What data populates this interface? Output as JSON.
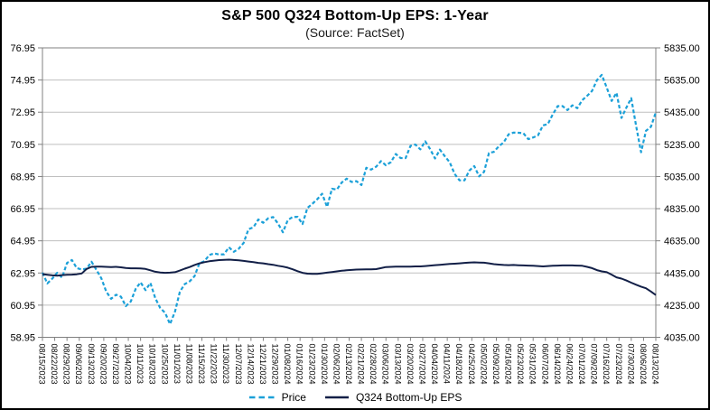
{
  "colors": {
    "price_line": "#1ba0d8",
    "eps_line": "#121f47",
    "gridline": "#bfbfbf",
    "axis_line": "#808080",
    "tick": "#808080",
    "text": "#000000",
    "frame_border": "#000000",
    "background": "#ffffff"
  },
  "chart_data": {
    "type": "line",
    "title": "S&P 500 Q324 Bottom-Up EPS: 1-Year",
    "subtitle": "(Source: FactSet)",
    "legend_position": "bottom",
    "grid": "horizontal",
    "x_tick_labels": [
      "08/15/2023",
      "08/22/2023",
      "08/29/2023",
      "09/06/2023",
      "09/13/2023",
      "09/20/2023",
      "09/27/2023",
      "10/04/2023",
      "10/11/2023",
      "10/18/2023",
      "10/25/2023",
      "11/01/2023",
      "11/08/2023",
      "11/15/2023",
      "11/22/2023",
      "11/30/2023",
      "12/07/2023",
      "12/14/2023",
      "12/21/2023",
      "12/29/2023",
      "01/08/2024",
      "01/16/2024",
      "01/23/2024",
      "01/30/2024",
      "02/06/2024",
      "02/13/2024",
      "02/21/2024",
      "02/28/2024",
      "03/06/2024",
      "03/13/2024",
      "03/20/2024",
      "03/27/2024",
      "04/04/2024",
      "04/11/2024",
      "04/18/2024",
      "04/25/2024",
      "05/02/2024",
      "05/09/2024",
      "05/16/2024",
      "05/23/2024",
      "05/31/2024",
      "06/07/2024",
      "06/14/2024",
      "06/24/2024",
      "07/01/2024",
      "07/09/2024",
      "07/16/2024",
      "07/23/2024",
      "07/30/2024",
      "08/06/2024",
      "08/13/2024"
    ],
    "y_left_axis": {
      "min": 58.95,
      "max": 76.95,
      "tick_labels": [
        "76.95",
        "74.95",
        "72.95",
        "70.95",
        "68.95",
        "66.95",
        "64.95",
        "62.95",
        "60.95",
        "58.95"
      ]
    },
    "y_right_axis": {
      "min": 4035.0,
      "max": 5835.0,
      "tick_labels": [
        "5835.00",
        "5635.00",
        "5435.00",
        "5235.00",
        "5035.00",
        "4835.00",
        "4635.00",
        "4435.00",
        "4235.00",
        "4035.00"
      ]
    },
    "series": [
      {
        "name": "Price",
        "axis": "right",
        "line_style": "dashed",
        "color": "#1ba0d8",
        "values": [
          4437,
          4370,
          4400,
          4436,
          4406,
          4497,
          4516,
          4465,
          4457,
          4462,
          4505,
          4454,
          4402,
          4320,
          4274,
          4300,
          4288,
          4229,
          4258,
          4336,
          4377,
          4328,
          4373,
          4278,
          4217,
          4187,
          4117,
          4194,
          4318,
          4366,
          4383,
          4415,
          4496,
          4508,
          4547,
          4557,
          4550,
          4551,
          4595,
          4567,
          4586,
          4622,
          4707,
          4719,
          4768,
          4747,
          4775,
          4783,
          4743,
          4688,
          4764,
          4783,
          4784,
          4739,
          4840,
          4865,
          4894,
          4928,
          4846,
          4959,
          4954,
          4998,
          5022,
          5001,
          5006,
          4982,
          5089,
          5078,
          5096,
          5131,
          5105,
          5124,
          5175,
          5150,
          5149,
          5225,
          5234,
          5204,
          5254,
          5206,
          5147,
          5202,
          5161,
          5123,
          5051,
          5011,
          5011,
          5072,
          5100,
          5036,
          5064,
          5181,
          5188,
          5223,
          5247,
          5297,
          5308,
          5307,
          5305,
          5267,
          5278,
          5291,
          5353,
          5361,
          5421,
          5473,
          5473,
          5448,
          5478,
          5460,
          5509,
          5537,
          5567,
          5634,
          5667,
          5588,
          5505,
          5556,
          5399,
          5463,
          5522,
          5347,
          5186,
          5319,
          5344,
          5434
        ]
      },
      {
        "name": "Q324 Bottom-Up EPS",
        "axis": "left",
        "line_style": "solid",
        "color": "#121f47",
        "values": [
          62.88,
          62.84,
          62.8,
          62.78,
          62.82,
          62.84,
          62.85,
          62.87,
          62.92,
          63.2,
          63.33,
          63.35,
          63.34,
          63.33,
          63.32,
          63.33,
          63.3,
          63.26,
          63.24,
          63.24,
          63.23,
          63.2,
          63.12,
          63.03,
          62.98,
          62.96,
          62.97,
          63.0,
          63.1,
          63.22,
          63.32,
          63.45,
          63.55,
          63.62,
          63.68,
          63.72,
          63.75,
          63.77,
          63.78,
          63.76,
          63.74,
          63.7,
          63.66,
          63.62,
          63.58,
          63.55,
          63.5,
          63.46,
          63.4,
          63.35,
          63.28,
          63.18,
          63.06,
          62.96,
          62.91,
          62.89,
          62.9,
          62.93,
          62.97,
          63.01,
          63.05,
          63.09,
          63.12,
          63.14,
          63.16,
          63.17,
          63.18,
          63.18,
          63.19,
          63.25,
          63.32,
          63.33,
          63.34,
          63.34,
          63.34,
          63.35,
          63.36,
          63.36,
          63.38,
          63.41,
          63.44,
          63.46,
          63.49,
          63.51,
          63.53,
          63.55,
          63.58,
          63.6,
          63.61,
          63.6,
          63.59,
          63.55,
          63.5,
          63.47,
          63.45,
          63.44,
          63.45,
          63.43,
          63.42,
          63.41,
          63.4,
          63.38,
          63.36,
          63.38,
          63.4,
          63.41,
          63.42,
          63.42,
          63.42,
          63.41,
          63.4,
          63.33,
          63.25,
          63.13,
          63.05,
          63.0,
          62.85,
          62.68,
          62.6,
          62.48,
          62.35,
          62.22,
          62.1,
          62.0,
          61.8,
          61.58
        ]
      }
    ]
  }
}
